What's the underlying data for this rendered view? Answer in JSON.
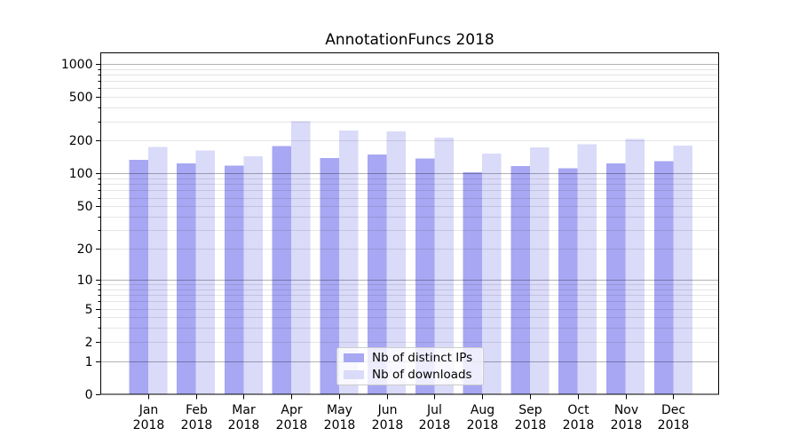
{
  "chart_data": {
    "type": "bar",
    "title": "AnnotationFuncs 2018",
    "categories": [
      "Jan",
      "Feb",
      "Mar",
      "Apr",
      "May",
      "Jun",
      "Jul",
      "Aug",
      "Sep",
      "Oct",
      "Nov",
      "Dec"
    ],
    "x_year_label": "2018",
    "series": [
      {
        "name": "Nb of distinct IPs",
        "color": "#a7a7f3",
        "values": [
          133,
          124,
          118,
          179,
          139,
          149,
          137,
          103,
          117,
          112,
          124,
          130
        ]
      },
      {
        "name": "Nb of downloads",
        "color": "#dadaf9",
        "values": [
          175,
          162,
          144,
          300,
          247,
          243,
          214,
          152,
          173,
          186,
          207,
          180
        ]
      }
    ],
    "yscale": "log1p",
    "ylim": [
      0,
      1285
    ],
    "yticks_labeled": [
      0,
      1,
      2,
      5,
      10,
      20,
      50,
      100,
      200,
      500,
      1000
    ],
    "yticks_major_grid": [
      1,
      10,
      100,
      1000
    ],
    "yticks_minor": [
      3,
      4,
      6,
      7,
      8,
      9,
      30,
      40,
      60,
      70,
      80,
      90,
      300,
      400,
      600,
      700,
      800,
      900
    ],
    "grid": "both",
    "legend_position": "lower center",
    "colors": {
      "axis": "#000000",
      "grid_major": "rgba(0,0,0,0.30)",
      "grid_minor": "rgba(0,0,0,0.10)",
      "background": "#ffffff"
    }
  }
}
